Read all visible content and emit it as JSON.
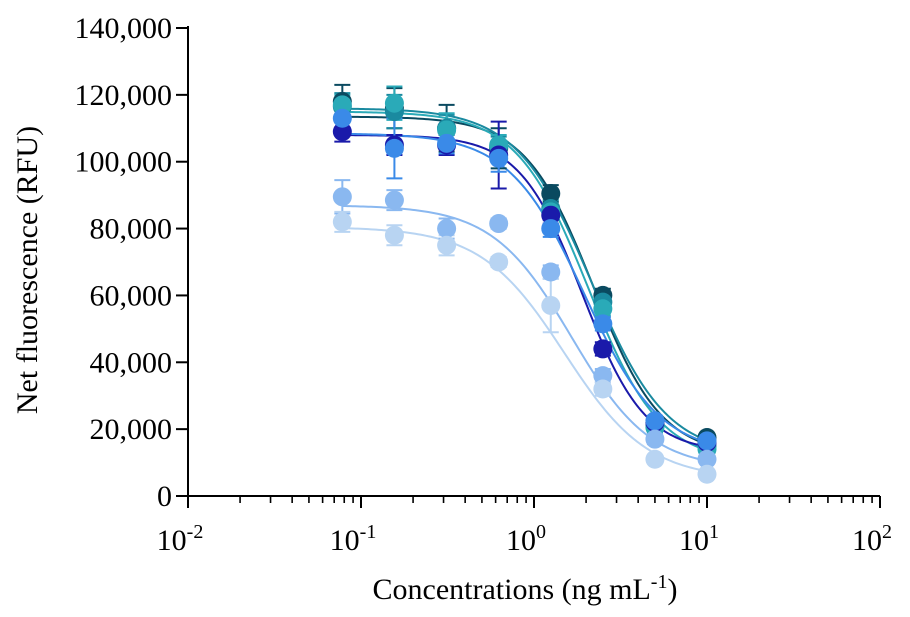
{
  "chart_data": {
    "type": "scatter",
    "x_scale": "log",
    "xlabel": "Concentrations (ng mL",
    "xlabel_sup": "-1",
    "xlabel_end": ")",
    "ylabel": "Net fluorescence (RFU)",
    "xlim": [
      0.01,
      100
    ],
    "ylim": [
      0,
      140000
    ],
    "x_ticks": [
      {
        "value": 0.01,
        "base": "10",
        "exp": "-2"
      },
      {
        "value": 0.1,
        "base": "10",
        "exp": "-1"
      },
      {
        "value": 1,
        "base": "10",
        "exp": "0"
      },
      {
        "value": 10,
        "base": "10",
        "exp": "1"
      },
      {
        "value": 100,
        "base": "10",
        "exp": "2"
      }
    ],
    "y_ticks": [
      {
        "value": 0,
        "label": "0"
      },
      {
        "value": 20000,
        "label": "20,000"
      },
      {
        "value": 40000,
        "label": "40,000"
      },
      {
        "value": 60000,
        "label": "60,000"
      },
      {
        "value": 80000,
        "label": "80,000"
      },
      {
        "value": 100000,
        "label": "100,000"
      },
      {
        "value": 120000,
        "label": "120,000"
      },
      {
        "value": 140000,
        "label": "140,000"
      }
    ],
    "grid": false,
    "legend": "none",
    "x": [
      0.078,
      0.156,
      0.3125,
      0.625,
      1.25,
      2.5,
      5,
      10
    ],
    "series": [
      {
        "color": "#0a4a60",
        "values": [
          118000,
          116000,
          110000,
          104000,
          90500,
          60000,
          22000,
          17500
        ],
        "errors": [
          5000,
          6000,
          7000,
          6000,
          2500,
          2000,
          1500,
          1000
        ],
        "fit": {
          "top": 113500,
          "bottom": 12000,
          "ec50": 2.2,
          "hill": 2.2
        }
      },
      {
        "color": "#1a8aa0",
        "values": [
          116500,
          115000,
          110000,
          104500,
          86000,
          58000,
          21000,
          15000
        ],
        "errors": [
          4000,
          5000,
          4000,
          3000,
          2500,
          2000,
          1500,
          1000
        ],
        "fit": {
          "top": 116000,
          "bottom": 12000,
          "ec50": 2.15,
          "hill": 2.0
        }
      },
      {
        "color": "#2aaab8",
        "values": [
          117000,
          117500,
          109500,
          105000,
          85000,
          56000,
          20500,
          14000
        ],
        "errors": [
          3000,
          5000,
          5000,
          3000,
          2000,
          2000,
          1500,
          1000
        ],
        "fit": {
          "top": 115000,
          "bottom": 10000,
          "ec50": 2.05,
          "hill": 2.1
        }
      },
      {
        "color": "#1a1aaa",
        "values": [
          109000,
          105000,
          105000,
          102000,
          84000,
          44000,
          22000,
          16000
        ],
        "errors": [
          3000,
          3000,
          3000,
          10000,
          2500,
          2000,
          1500,
          1000
        ],
        "fit": {
          "top": 108000,
          "bottom": 13000,
          "ec50": 1.9,
          "hill": 2.4
        }
      },
      {
        "color": "#3a8ae8",
        "values": [
          113000,
          104000,
          105500,
          101000,
          80000,
          51500,
          22500,
          16500
        ],
        "errors": [
          3000,
          9000,
          3000,
          4000,
          2500,
          2000,
          1500,
          1000
        ],
        "fit": {
          "top": 108500,
          "bottom": 12500,
          "ec50": 1.95,
          "hill": 2.0
        }
      },
      {
        "color": "#8ab8f0",
        "values": [
          89500,
          88500,
          80000,
          81500,
          67000,
          36000,
          17000,
          11000
        ],
        "errors": [
          5000,
          3000,
          3000,
          1500,
          2000,
          2000,
          1500,
          1000
        ],
        "fit": {
          "top": 87000,
          "bottom": 8000,
          "ec50": 1.65,
          "hill": 1.9
        }
      },
      {
        "color": "#b8d4f2",
        "values": [
          82000,
          78000,
          75000,
          70000,
          57000,
          32000,
          11000,
          6500
        ],
        "errors": [
          3000,
          3000,
          3000,
          1500,
          8000,
          2000,
          1000,
          1000
        ],
        "fit": {
          "top": 80500,
          "bottom": 5000,
          "ec50": 1.5,
          "hill": 1.8
        }
      }
    ]
  }
}
